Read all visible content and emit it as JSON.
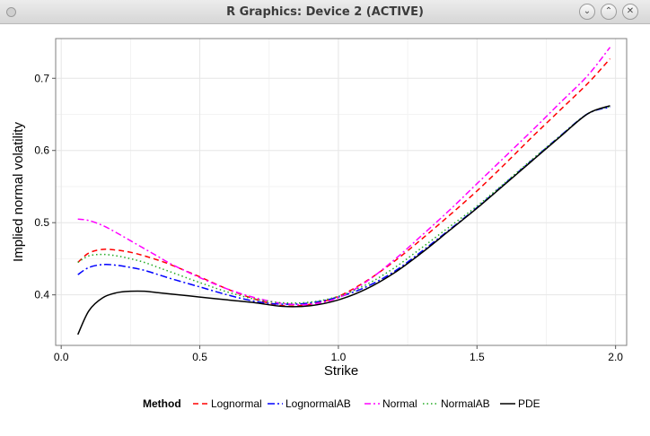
{
  "window": {
    "title": "R Graphics: Device 2 (ACTIVE)",
    "buttons": [
      {
        "name": "minimize-button",
        "glyph": "⌄"
      },
      {
        "name": "maximize-button",
        "glyph": "⌃"
      },
      {
        "name": "close-button",
        "glyph": "✕"
      }
    ]
  },
  "chart_data": {
    "type": "line",
    "title": "",
    "xlabel": "Strike",
    "ylabel": "Implied normal volatility",
    "xlim": [
      -0.02,
      2.04
    ],
    "ylim": [
      0.33,
      0.755
    ],
    "xticks": [
      0.0,
      0.5,
      1.0,
      1.5,
      2.0
    ],
    "xtick_labels": [
      "0.0",
      "0.5",
      "1.0",
      "1.5",
      "2.0"
    ],
    "yticks": [
      0.4,
      0.5,
      0.6,
      0.7
    ],
    "ytick_labels": [
      "0.4",
      "0.5",
      "0.6",
      "0.7"
    ],
    "grid": true,
    "legend": {
      "position": "bottom",
      "title": "Method"
    },
    "x": [
      0.06,
      0.1,
      0.15,
      0.2,
      0.25,
      0.3,
      0.35,
      0.4,
      0.5,
      0.6,
      0.7,
      0.8,
      0.9,
      1.0,
      1.1,
      1.2,
      1.3,
      1.4,
      1.5,
      1.6,
      1.7,
      1.8,
      1.9,
      1.98
    ],
    "series": [
      {
        "name": "Lognormal",
        "color": "#ff0000",
        "dash": "6,4",
        "values": [
          0.445,
          0.458,
          0.463,
          0.462,
          0.459,
          0.454,
          0.448,
          0.441,
          0.425,
          0.408,
          0.394,
          0.385,
          0.387,
          0.398,
          0.419,
          0.446,
          0.477,
          0.51,
          0.544,
          0.581,
          0.619,
          0.656,
          0.693,
          0.727
        ]
      },
      {
        "name": "LognormalAB",
        "color": "#0000ff",
        "dash": "8,3,2,3",
        "values": [
          0.428,
          0.438,
          0.442,
          0.441,
          0.438,
          0.434,
          0.428,
          0.422,
          0.411,
          0.4,
          0.391,
          0.387,
          0.389,
          0.397,
          0.411,
          0.432,
          0.46,
          0.49,
          0.521,
          0.554,
          0.587,
          0.62,
          0.651,
          0.66
        ]
      },
      {
        "name": "Normal",
        "color": "#ff00ff",
        "dash": "7,3,2,3",
        "values": [
          0.505,
          0.503,
          0.496,
          0.486,
          0.475,
          0.464,
          0.453,
          0.442,
          0.424,
          0.408,
          0.396,
          0.388,
          0.387,
          0.396,
          0.418,
          0.448,
          0.482,
          0.517,
          0.554,
          0.591,
          0.628,
          0.666,
          0.704,
          0.743
        ]
      },
      {
        "name": "NormalAB",
        "color": "#22aa22",
        "dash": "1.5,3",
        "values": [
          0.445,
          0.454,
          0.456,
          0.454,
          0.45,
          0.445,
          0.438,
          0.431,
          0.417,
          0.404,
          0.394,
          0.389,
          0.39,
          0.398,
          0.414,
          0.437,
          0.465,
          0.494,
          0.523,
          0.555,
          0.588,
          0.62,
          0.651,
          0.661
        ]
      },
      {
        "name": "PDE",
        "color": "#000000",
        "dash": "",
        "values": [
          0.345,
          0.378,
          0.396,
          0.403,
          0.405,
          0.405,
          0.403,
          0.401,
          0.397,
          0.393,
          0.389,
          0.384,
          0.385,
          0.393,
          0.408,
          0.43,
          0.458,
          0.489,
          0.52,
          0.553,
          0.586,
          0.619,
          0.651,
          0.662
        ]
      }
    ]
  }
}
